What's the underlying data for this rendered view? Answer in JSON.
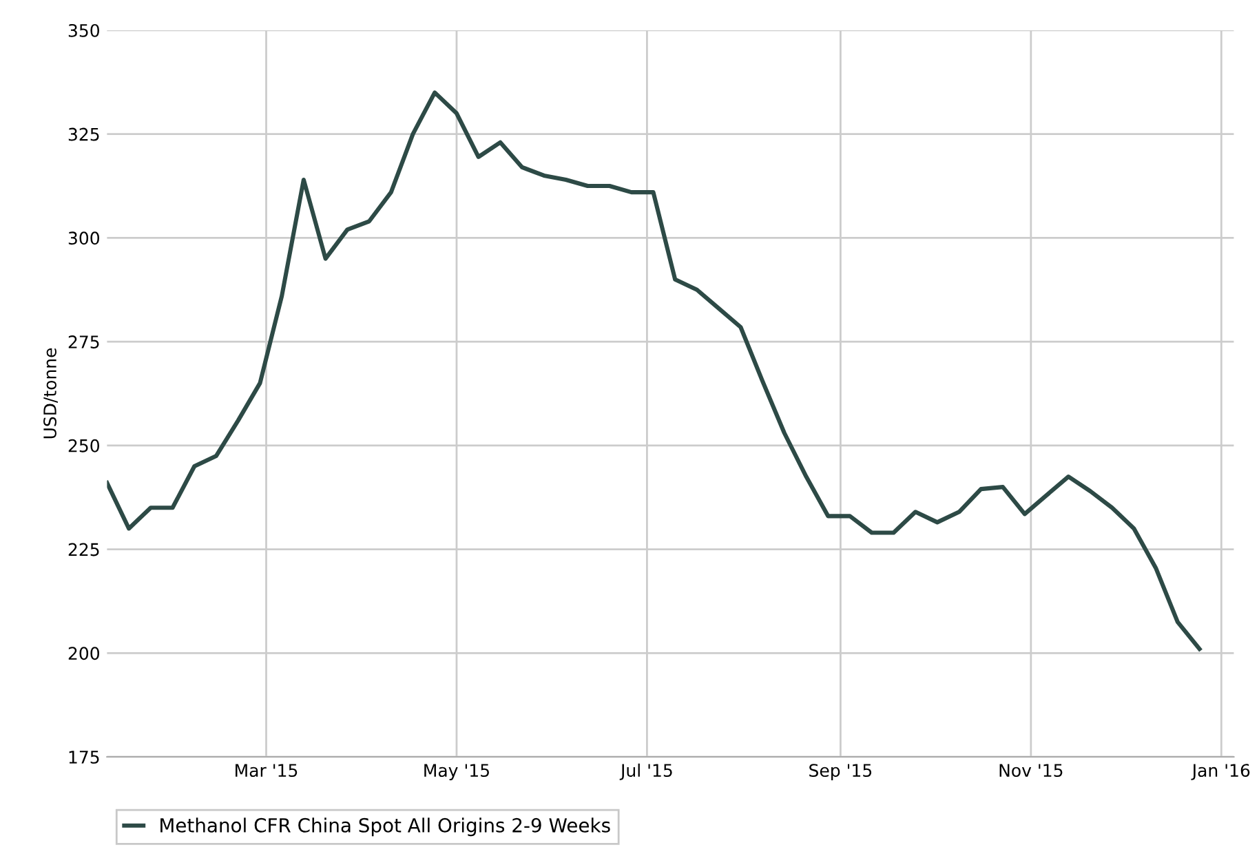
{
  "chart_data": {
    "type": "line",
    "ylabel": "USD/tonne",
    "x": [
      "2015-01-09",
      "2015-01-16",
      "2015-01-23",
      "2015-01-30",
      "2015-02-06",
      "2015-02-13",
      "2015-02-20",
      "2015-02-27",
      "2015-03-06",
      "2015-03-13",
      "2015-03-20",
      "2015-03-27",
      "2015-04-03",
      "2015-04-10",
      "2015-04-17",
      "2015-04-24",
      "2015-05-01",
      "2015-05-08",
      "2015-05-15",
      "2015-05-22",
      "2015-05-29",
      "2015-06-05",
      "2015-06-12",
      "2015-06-19",
      "2015-06-26",
      "2015-07-03",
      "2015-07-10",
      "2015-07-17",
      "2015-07-24",
      "2015-07-31",
      "2015-08-07",
      "2015-08-14",
      "2015-08-21",
      "2015-08-28",
      "2015-09-04",
      "2015-09-11",
      "2015-09-18",
      "2015-09-25",
      "2015-10-02",
      "2015-10-09",
      "2015-10-16",
      "2015-10-23",
      "2015-10-30",
      "2015-11-06",
      "2015-11-13",
      "2015-11-20",
      "2015-11-27",
      "2015-12-04",
      "2015-12-11",
      "2015-12-18",
      "2015-12-25"
    ],
    "series": [
      {
        "name": "Methanol CFR China Spot All Origins 2-9 Weeks",
        "color": "#2d4a46",
        "values": [
          241,
          230,
          235,
          235,
          245,
          247.5,
          256,
          265,
          286,
          314,
          295,
          302,
          304,
          311,
          325,
          335,
          330,
          319.5,
          323,
          317,
          315,
          314,
          312.5,
          312.5,
          311,
          311,
          290,
          287.5,
          283,
          278.5,
          265.5,
          253,
          242.5,
          233,
          233,
          229,
          229,
          234,
          231.5,
          234,
          239.5,
          240,
          233.5,
          238,
          242.5,
          239,
          235,
          230,
          220.5,
          207.5,
          201
        ]
      }
    ],
    "xlim": [
      "2015-01-09",
      "2016-01-05"
    ],
    "xticks": [
      {
        "value": "2015-03-01",
        "label": "Mar '15"
      },
      {
        "value": "2015-05-01",
        "label": "May '15"
      },
      {
        "value": "2015-07-01",
        "label": "Jul '15"
      },
      {
        "value": "2015-09-01",
        "label": "Sep '15"
      },
      {
        "value": "2015-11-01",
        "label": "Nov '15"
      },
      {
        "value": "2016-01-01",
        "label": "Jan '16"
      }
    ],
    "ylim": [
      175,
      350
    ],
    "yticks": [
      175,
      200,
      225,
      250,
      275,
      300,
      325,
      350
    ],
    "grid": true,
    "legend": "bottom",
    "marker": "none",
    "line_style": "solid"
  }
}
